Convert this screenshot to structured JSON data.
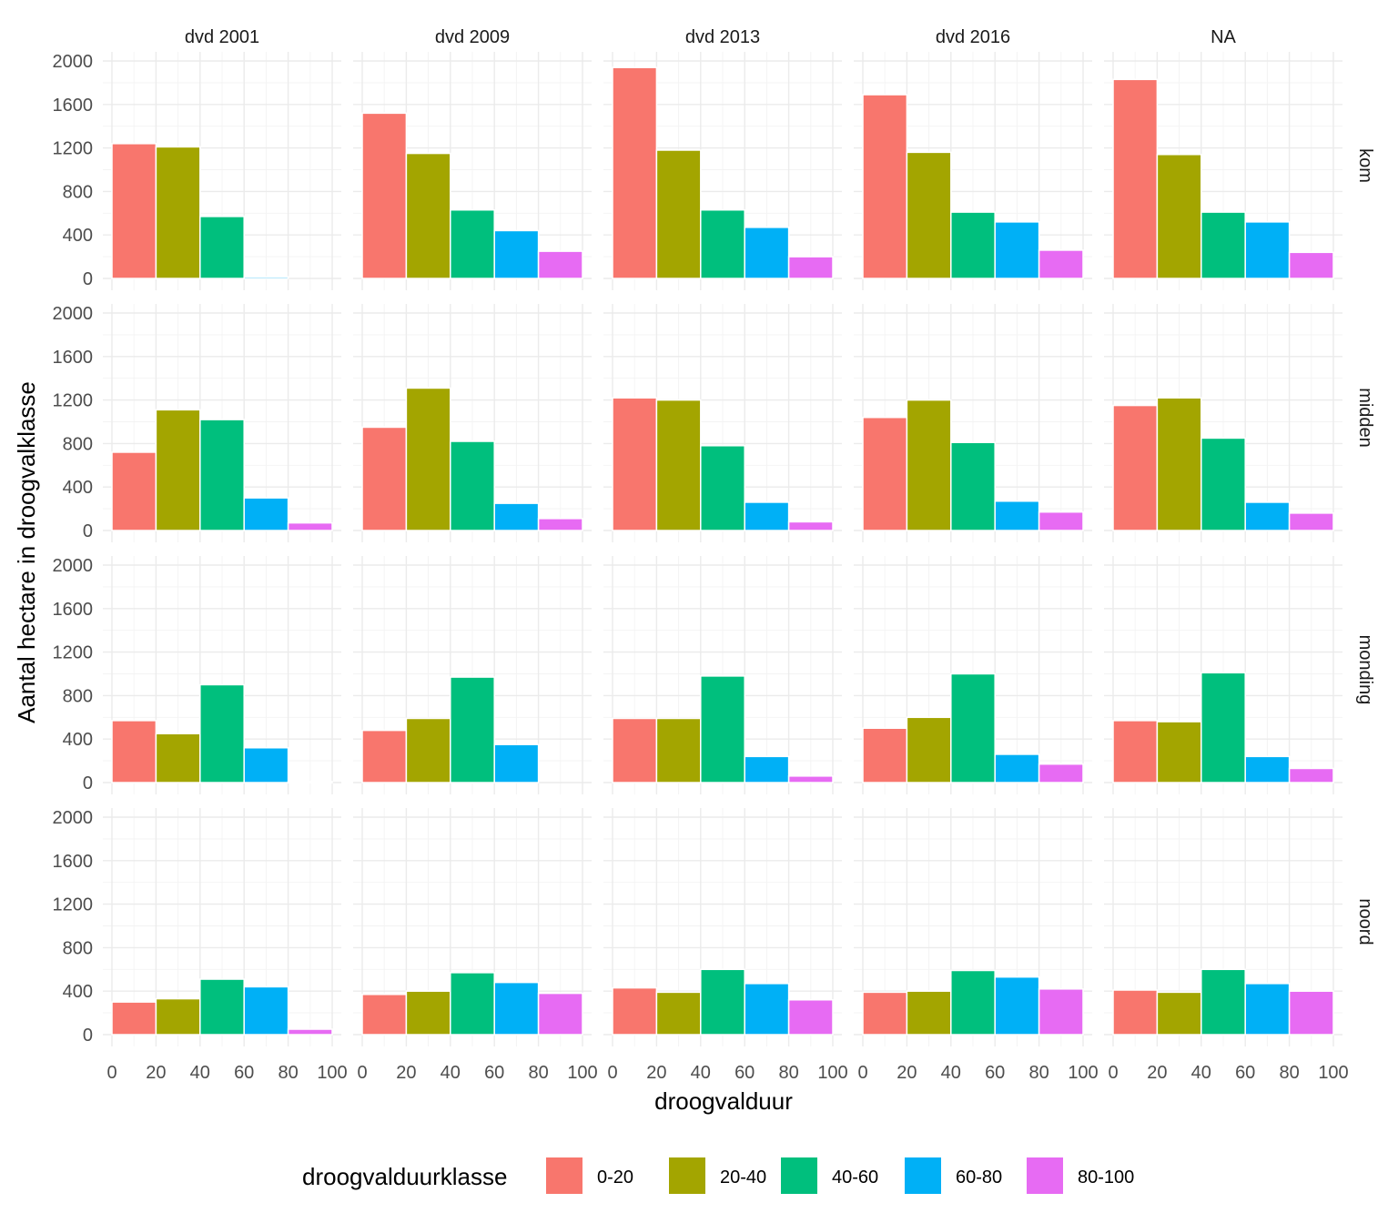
{
  "chart_data": {
    "type": "bar",
    "subtype": "faceted-histogram",
    "xlabel": "droogvalduur",
    "ylabel": "Aantal hectare in droogvalklasse",
    "xlim": [
      0,
      100
    ],
    "ylim": [
      0,
      2000
    ],
    "x_ticks": [
      0,
      20,
      40,
      60,
      80,
      100
    ],
    "y_ticks": [
      0,
      400,
      800,
      1200,
      1600,
      2000
    ],
    "grid": true,
    "facet_columns": [
      "dvd 2001",
      "dvd 2009",
      "dvd 2013",
      "dvd 2016",
      "NA"
    ],
    "facet_rows": [
      "kom",
      "midden",
      "monding",
      "noord"
    ],
    "bin_centers": [
      10,
      30,
      50,
      70,
      90
    ],
    "bin_width": 20,
    "legend": {
      "title": "droogvalduurklasse",
      "position": "bottom",
      "entries": [
        {
          "label": "0-20",
          "color": "#F8766D"
        },
        {
          "label": "20-40",
          "color": "#A3A500"
        },
        {
          "label": "40-60",
          "color": "#00BF7D"
        },
        {
          "label": "60-80",
          "color": "#00B0F6"
        },
        {
          "label": "80-100",
          "color": "#E76BF3"
        }
      ]
    },
    "values": {
      "kom": [
        [
          1240,
          1210,
          570,
          15,
          0
        ],
        [
          1520,
          1150,
          630,
          440,
          250
        ],
        [
          1940,
          1180,
          630,
          470,
          200
        ],
        [
          1690,
          1160,
          610,
          520,
          260
        ],
        [
          1830,
          1140,
          610,
          520,
          240
        ]
      ],
      "midden": [
        [
          720,
          1110,
          1020,
          300,
          70
        ],
        [
          950,
          1310,
          820,
          250,
          110
        ],
        [
          1220,
          1200,
          780,
          260,
          80
        ],
        [
          1040,
          1200,
          810,
          270,
          170
        ],
        [
          1150,
          1220,
          850,
          260,
          160
        ]
      ],
      "monding": [
        [
          570,
          450,
          900,
          320,
          10
        ],
        [
          480,
          590,
          970,
          350,
          0
        ],
        [
          590,
          590,
          980,
          240,
          60
        ],
        [
          500,
          600,
          1000,
          260,
          170
        ],
        [
          570,
          560,
          1010,
          240,
          130
        ]
      ],
      "noord": [
        [
          300,
          330,
          510,
          440,
          50
        ],
        [
          370,
          400,
          570,
          480,
          380
        ],
        [
          430,
          390,
          600,
          470,
          320
        ],
        [
          390,
          400,
          590,
          530,
          420
        ],
        [
          410,
          390,
          600,
          470,
          400
        ]
      ]
    }
  }
}
